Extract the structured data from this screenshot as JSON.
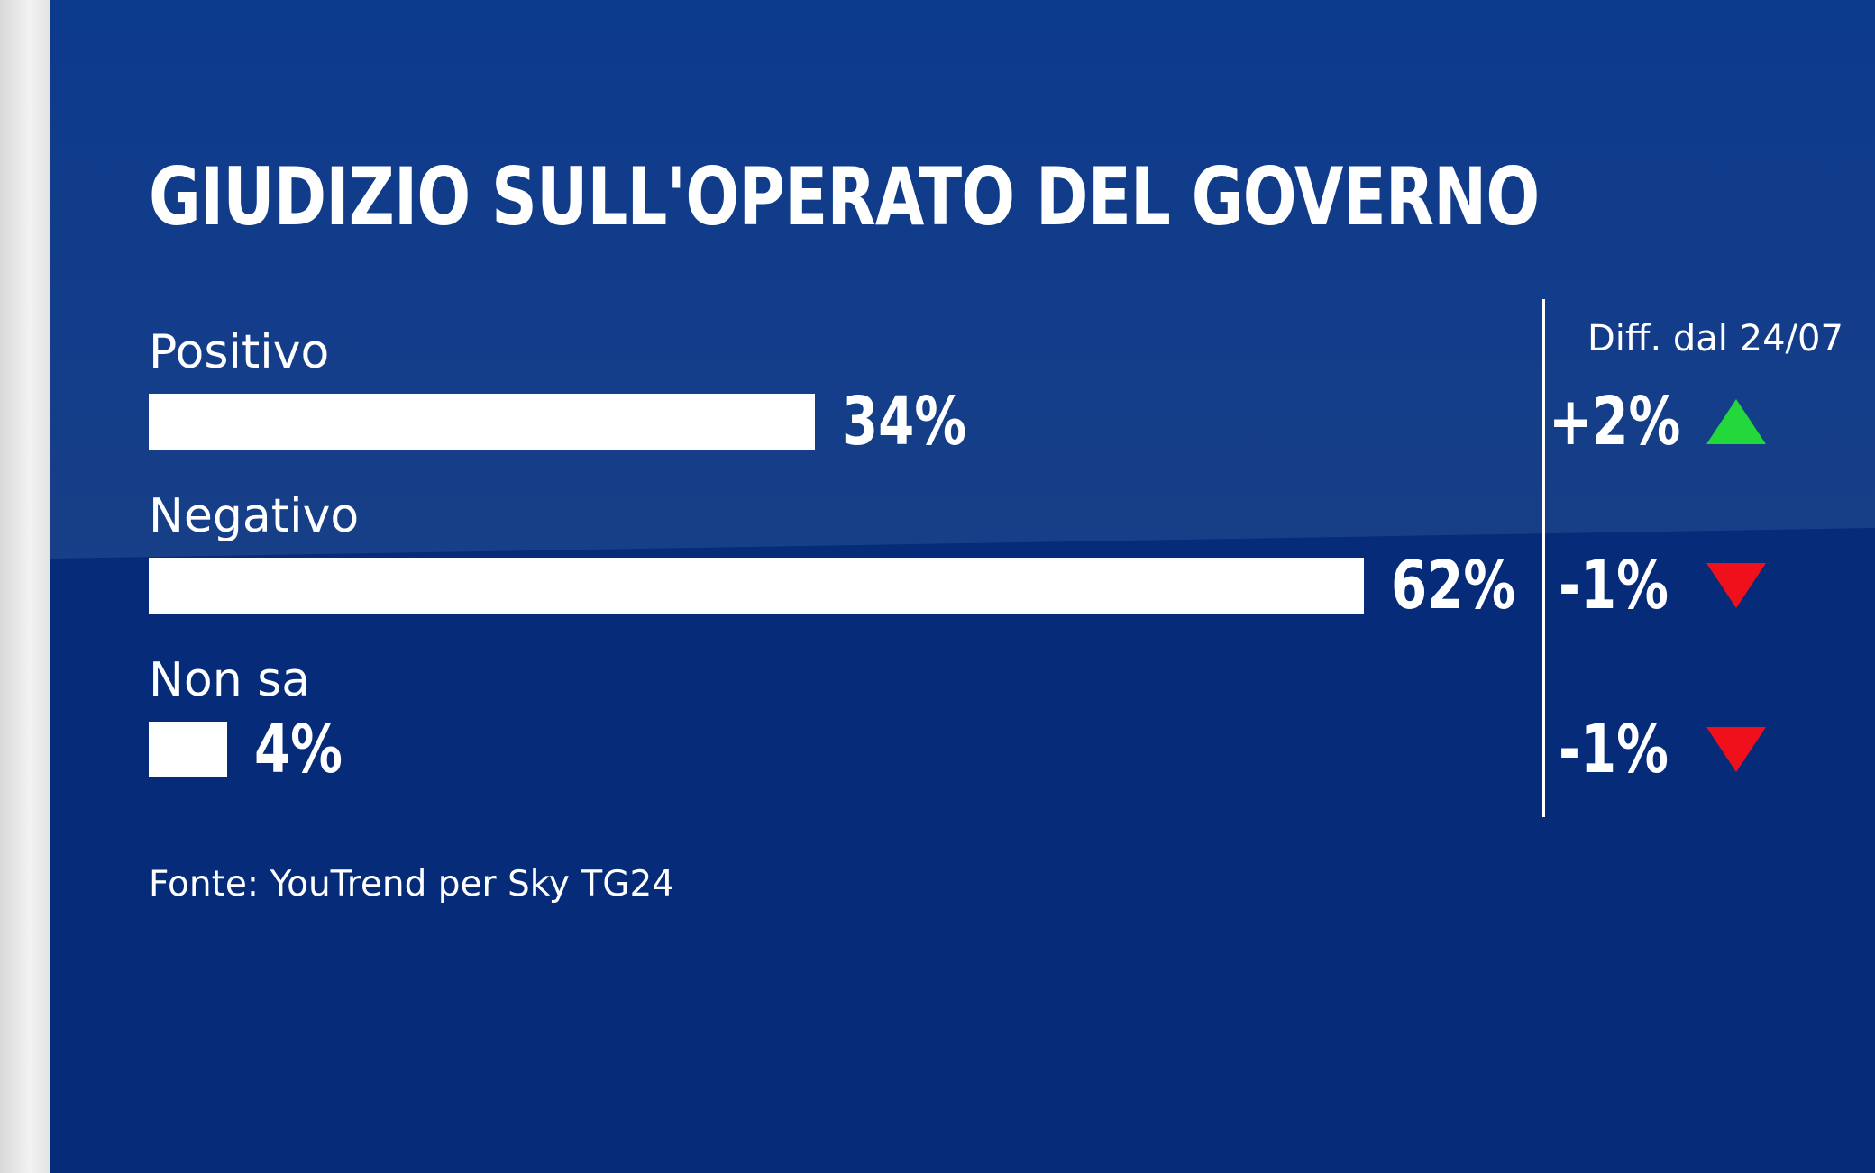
{
  "chart_data": {
    "type": "bar",
    "orientation": "horizontal",
    "title": "GIUDIZIO SULL'OPERATO DEL GOVERNO",
    "categories": [
      "Positivo",
      "Negativo",
      "Non sa"
    ],
    "values": [
      34,
      62,
      4
    ],
    "value_labels": [
      "34%",
      "62%",
      "4%"
    ],
    "unit": "%",
    "xlim": [
      0,
      62
    ],
    "diff": {
      "header": "Diff. dal 24/07",
      "values": [
        2,
        -1,
        -1
      ],
      "labels": [
        "+2%",
        "-1%",
        "-1%"
      ],
      "arrows": [
        "up",
        "down",
        "down"
      ]
    },
    "source": "Fonte: YouTrend per Sky TG24"
  },
  "colors": {
    "background": "#062b78",
    "bar": "#ffffff",
    "text": "#ffffff",
    "arrow_up": "#22d83a",
    "arrow_down": "#f0101c"
  }
}
